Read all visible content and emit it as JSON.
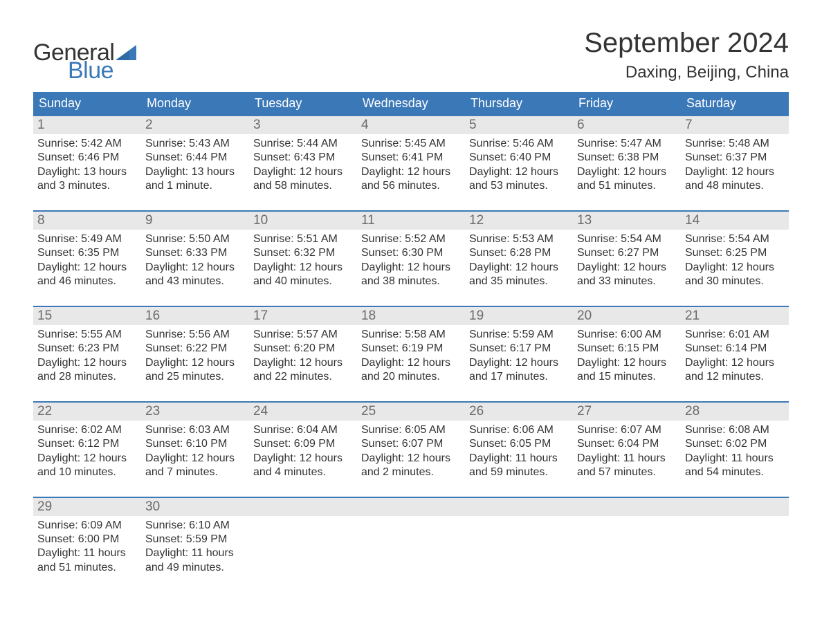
{
  "brand": {
    "word1": "General",
    "word2": "Blue",
    "brand_color": "#3b78b8",
    "text_color": "#333333"
  },
  "title": "September 2024",
  "location": "Daxing, Beijing, China",
  "colors": {
    "header_bg": "#3b78b8",
    "header_text": "#ffffff",
    "daynum_bg": "#e8e8e8",
    "daynum_text": "#6b6b6b",
    "body_text": "#333333",
    "week_border": "#3b78b8",
    "page_bg": "#ffffff"
  },
  "typography": {
    "title_fontsize": 40,
    "location_fontsize": 24,
    "weekday_fontsize": 18,
    "daynum_fontsize": 19,
    "body_fontsize": 16
  },
  "weekdays": [
    "Sunday",
    "Monday",
    "Tuesday",
    "Wednesday",
    "Thursday",
    "Friday",
    "Saturday"
  ],
  "weeks": [
    [
      {
        "d": "1",
        "sr": "Sunrise: 5:42 AM",
        "ss": "Sunset: 6:46 PM",
        "dl": "Daylight: 13 hours and 3 minutes."
      },
      {
        "d": "2",
        "sr": "Sunrise: 5:43 AM",
        "ss": "Sunset: 6:44 PM",
        "dl": "Daylight: 13 hours and 1 minute."
      },
      {
        "d": "3",
        "sr": "Sunrise: 5:44 AM",
        "ss": "Sunset: 6:43 PM",
        "dl": "Daylight: 12 hours and 58 minutes."
      },
      {
        "d": "4",
        "sr": "Sunrise: 5:45 AM",
        "ss": "Sunset: 6:41 PM",
        "dl": "Daylight: 12 hours and 56 minutes."
      },
      {
        "d": "5",
        "sr": "Sunrise: 5:46 AM",
        "ss": "Sunset: 6:40 PM",
        "dl": "Daylight: 12 hours and 53 minutes."
      },
      {
        "d": "6",
        "sr": "Sunrise: 5:47 AM",
        "ss": "Sunset: 6:38 PM",
        "dl": "Daylight: 12 hours and 51 minutes."
      },
      {
        "d": "7",
        "sr": "Sunrise: 5:48 AM",
        "ss": "Sunset: 6:37 PM",
        "dl": "Daylight: 12 hours and 48 minutes."
      }
    ],
    [
      {
        "d": "8",
        "sr": "Sunrise: 5:49 AM",
        "ss": "Sunset: 6:35 PM",
        "dl": "Daylight: 12 hours and 46 minutes."
      },
      {
        "d": "9",
        "sr": "Sunrise: 5:50 AM",
        "ss": "Sunset: 6:33 PM",
        "dl": "Daylight: 12 hours and 43 minutes."
      },
      {
        "d": "10",
        "sr": "Sunrise: 5:51 AM",
        "ss": "Sunset: 6:32 PM",
        "dl": "Daylight: 12 hours and 40 minutes."
      },
      {
        "d": "11",
        "sr": "Sunrise: 5:52 AM",
        "ss": "Sunset: 6:30 PM",
        "dl": "Daylight: 12 hours and 38 minutes."
      },
      {
        "d": "12",
        "sr": "Sunrise: 5:53 AM",
        "ss": "Sunset: 6:28 PM",
        "dl": "Daylight: 12 hours and 35 minutes."
      },
      {
        "d": "13",
        "sr": "Sunrise: 5:54 AM",
        "ss": "Sunset: 6:27 PM",
        "dl": "Daylight: 12 hours and 33 minutes."
      },
      {
        "d": "14",
        "sr": "Sunrise: 5:54 AM",
        "ss": "Sunset: 6:25 PM",
        "dl": "Daylight: 12 hours and 30 minutes."
      }
    ],
    [
      {
        "d": "15",
        "sr": "Sunrise: 5:55 AM",
        "ss": "Sunset: 6:23 PM",
        "dl": "Daylight: 12 hours and 28 minutes."
      },
      {
        "d": "16",
        "sr": "Sunrise: 5:56 AM",
        "ss": "Sunset: 6:22 PM",
        "dl": "Daylight: 12 hours and 25 minutes."
      },
      {
        "d": "17",
        "sr": "Sunrise: 5:57 AM",
        "ss": "Sunset: 6:20 PM",
        "dl": "Daylight: 12 hours and 22 minutes."
      },
      {
        "d": "18",
        "sr": "Sunrise: 5:58 AM",
        "ss": "Sunset: 6:19 PM",
        "dl": "Daylight: 12 hours and 20 minutes."
      },
      {
        "d": "19",
        "sr": "Sunrise: 5:59 AM",
        "ss": "Sunset: 6:17 PM",
        "dl": "Daylight: 12 hours and 17 minutes."
      },
      {
        "d": "20",
        "sr": "Sunrise: 6:00 AM",
        "ss": "Sunset: 6:15 PM",
        "dl": "Daylight: 12 hours and 15 minutes."
      },
      {
        "d": "21",
        "sr": "Sunrise: 6:01 AM",
        "ss": "Sunset: 6:14 PM",
        "dl": "Daylight: 12 hours and 12 minutes."
      }
    ],
    [
      {
        "d": "22",
        "sr": "Sunrise: 6:02 AM",
        "ss": "Sunset: 6:12 PM",
        "dl": "Daylight: 12 hours and 10 minutes."
      },
      {
        "d": "23",
        "sr": "Sunrise: 6:03 AM",
        "ss": "Sunset: 6:10 PM",
        "dl": "Daylight: 12 hours and 7 minutes."
      },
      {
        "d": "24",
        "sr": "Sunrise: 6:04 AM",
        "ss": "Sunset: 6:09 PM",
        "dl": "Daylight: 12 hours and 4 minutes."
      },
      {
        "d": "25",
        "sr": "Sunrise: 6:05 AM",
        "ss": "Sunset: 6:07 PM",
        "dl": "Daylight: 12 hours and 2 minutes."
      },
      {
        "d": "26",
        "sr": "Sunrise: 6:06 AM",
        "ss": "Sunset: 6:05 PM",
        "dl": "Daylight: 11 hours and 59 minutes."
      },
      {
        "d": "27",
        "sr": "Sunrise: 6:07 AM",
        "ss": "Sunset: 6:04 PM",
        "dl": "Daylight: 11 hours and 57 minutes."
      },
      {
        "d": "28",
        "sr": "Sunrise: 6:08 AM",
        "ss": "Sunset: 6:02 PM",
        "dl": "Daylight: 11 hours and 54 minutes."
      }
    ],
    [
      {
        "d": "29",
        "sr": "Sunrise: 6:09 AM",
        "ss": "Sunset: 6:00 PM",
        "dl": "Daylight: 11 hours and 51 minutes."
      },
      {
        "d": "30",
        "sr": "Sunrise: 6:10 AM",
        "ss": "Sunset: 5:59 PM",
        "dl": "Daylight: 11 hours and 49 minutes."
      },
      null,
      null,
      null,
      null,
      null
    ]
  ]
}
